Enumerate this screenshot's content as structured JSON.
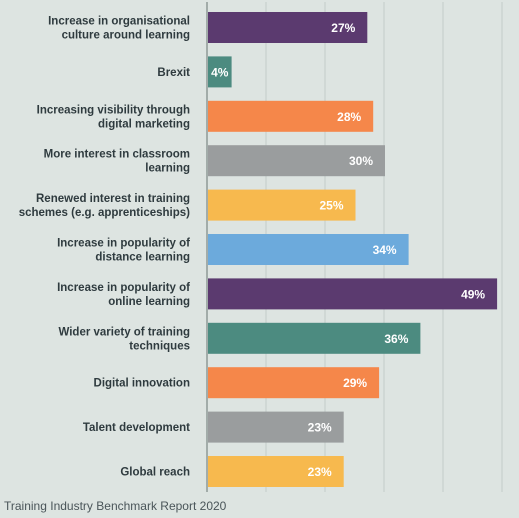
{
  "colors": {
    "background": "#dde4e1",
    "purple": "#5b3a6f",
    "teal": "#4c8b80",
    "orange": "#f5874a",
    "grey": "#9a9d9e",
    "yellow": "#f7b94e",
    "blue": "#6caadc",
    "gridline": "#c2ccc9",
    "axis": "#7b8784"
  },
  "chart_data": {
    "type": "bar",
    "orientation": "horizontal",
    "categories": [
      [
        "Increase in organisational",
        "culture around learning"
      ],
      [
        "Brexit"
      ],
      [
        "Increasing visibility through",
        "digital marketing"
      ],
      [
        "More interest in classroom",
        "learning"
      ],
      [
        "Renewed interest in training",
        "schemes (e.g. apprenticeships)"
      ],
      [
        "Increase in popularity of",
        "distance learning"
      ],
      [
        "Increase in popularity of",
        "online learning"
      ],
      [
        "Wider variety of training",
        "techniques"
      ],
      [
        "Digital innovation"
      ],
      [
        "Talent development"
      ],
      [
        "Global reach"
      ]
    ],
    "values": [
      27,
      4,
      28,
      30,
      25,
      34,
      49,
      36,
      29,
      23,
      23
    ],
    "value_labels": [
      "27%",
      "4%",
      "28%",
      "30%",
      "25%",
      "34%",
      "49%",
      "36%",
      "29%",
      "23%",
      "23%"
    ],
    "bar_colors": [
      "purple",
      "teal",
      "orange",
      "grey",
      "yellow",
      "blue",
      "purple",
      "teal",
      "orange",
      "grey",
      "yellow"
    ],
    "xlim": [
      0,
      50
    ],
    "grid": true,
    "legend": "none"
  },
  "source": "Training Industry Benchmark Report 2020"
}
